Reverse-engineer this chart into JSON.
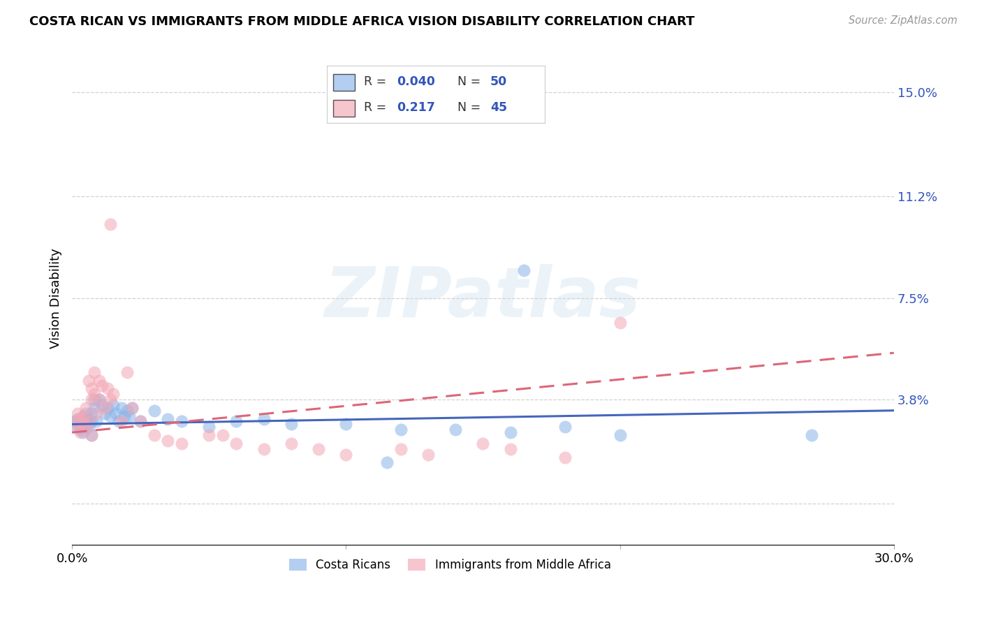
{
  "title": "COSTA RICAN VS IMMIGRANTS FROM MIDDLE AFRICA VISION DISABILITY CORRELATION CHART",
  "source": "Source: ZipAtlas.com",
  "ylabel": "Vision Disability",
  "xlim": [
    0.0,
    0.3
  ],
  "ylim": [
    -0.015,
    0.165
  ],
  "yticks": [
    0.0,
    0.038,
    0.075,
    0.112,
    0.15
  ],
  "ytick_labels": [
    "",
    "3.8%",
    "7.5%",
    "11.2%",
    "15.0%"
  ],
  "xticks": [
    0.0,
    0.1,
    0.2,
    0.3
  ],
  "xtick_labels": [
    "0.0%",
    "",
    "",
    "30.0%"
  ],
  "grid_color": "#cccccc",
  "background_color": "#ffffff",
  "watermark_text": "ZIPatlas",
  "blue_color": "#8ab4e8",
  "pink_color": "#f4a7b5",
  "blue_line_color": "#4466bb",
  "pink_line_color": "#dd6677",
  "blue_label": "Costa Ricans",
  "pink_label": "Immigrants from Middle Africa",
  "legend_text_color": "#3355bb",
  "legend_R1": "0.040",
  "legend_N1": "50",
  "legend_R2": "0.217",
  "legend_N2": "45",
  "blue_scatter": [
    [
      0.001,
      0.03
    ],
    [
      0.002,
      0.028
    ],
    [
      0.002,
      0.031
    ],
    [
      0.003,
      0.029
    ],
    [
      0.003,
      0.027
    ],
    [
      0.003,
      0.03
    ],
    [
      0.004,
      0.028
    ],
    [
      0.004,
      0.032
    ],
    [
      0.004,
      0.026
    ],
    [
      0.005,
      0.03
    ],
    [
      0.005,
      0.028
    ],
    [
      0.005,
      0.033
    ],
    [
      0.006,
      0.031
    ],
    [
      0.006,
      0.028
    ],
    [
      0.007,
      0.03
    ],
    [
      0.007,
      0.025
    ],
    [
      0.007,
      0.033
    ],
    [
      0.008,
      0.035
    ],
    [
      0.008,
      0.038
    ],
    [
      0.009,
      0.03
    ],
    [
      0.01,
      0.038
    ],
    [
      0.011,
      0.036
    ],
    [
      0.012,
      0.033
    ],
    [
      0.013,
      0.035
    ],
    [
      0.014,
      0.032
    ],
    [
      0.015,
      0.036
    ],
    [
      0.016,
      0.033
    ],
    [
      0.017,
      0.03
    ],
    [
      0.018,
      0.035
    ],
    [
      0.019,
      0.032
    ],
    [
      0.02,
      0.034
    ],
    [
      0.021,
      0.032
    ],
    [
      0.022,
      0.035
    ],
    [
      0.025,
      0.03
    ],
    [
      0.03,
      0.034
    ],
    [
      0.035,
      0.031
    ],
    [
      0.04,
      0.03
    ],
    [
      0.05,
      0.028
    ],
    [
      0.06,
      0.03
    ],
    [
      0.07,
      0.031
    ],
    [
      0.08,
      0.029
    ],
    [
      0.1,
      0.029
    ],
    [
      0.12,
      0.027
    ],
    [
      0.14,
      0.027
    ],
    [
      0.16,
      0.026
    ],
    [
      0.18,
      0.028
    ],
    [
      0.2,
      0.025
    ],
    [
      0.27,
      0.025
    ],
    [
      0.115,
      0.015
    ],
    [
      0.165,
      0.085
    ]
  ],
  "pink_scatter": [
    [
      0.001,
      0.028
    ],
    [
      0.002,
      0.03
    ],
    [
      0.002,
      0.033
    ],
    [
      0.003,
      0.031
    ],
    [
      0.003,
      0.026
    ],
    [
      0.004,
      0.029
    ],
    [
      0.004,
      0.032
    ],
    [
      0.005,
      0.035
    ],
    [
      0.005,
      0.028
    ],
    [
      0.006,
      0.03
    ],
    [
      0.006,
      0.045
    ],
    [
      0.007,
      0.038
    ],
    [
      0.007,
      0.042
    ],
    [
      0.007,
      0.025
    ],
    [
      0.008,
      0.048
    ],
    [
      0.008,
      0.04
    ],
    [
      0.009,
      0.033
    ],
    [
      0.01,
      0.045
    ],
    [
      0.01,
      0.038
    ],
    [
      0.011,
      0.043
    ],
    [
      0.012,
      0.035
    ],
    [
      0.013,
      0.042
    ],
    [
      0.014,
      0.038
    ],
    [
      0.015,
      0.04
    ],
    [
      0.018,
      0.03
    ],
    [
      0.02,
      0.048
    ],
    [
      0.022,
      0.035
    ],
    [
      0.025,
      0.03
    ],
    [
      0.03,
      0.025
    ],
    [
      0.035,
      0.023
    ],
    [
      0.04,
      0.022
    ],
    [
      0.05,
      0.025
    ],
    [
      0.06,
      0.022
    ],
    [
      0.07,
      0.02
    ],
    [
      0.08,
      0.022
    ],
    [
      0.09,
      0.02
    ],
    [
      0.1,
      0.018
    ],
    [
      0.12,
      0.02
    ],
    [
      0.13,
      0.018
    ],
    [
      0.15,
      0.022
    ],
    [
      0.18,
      0.017
    ],
    [
      0.2,
      0.066
    ],
    [
      0.014,
      0.102
    ],
    [
      0.055,
      0.025
    ],
    [
      0.16,
      0.02
    ]
  ],
  "blue_fit_x": [
    0.0,
    0.3
  ],
  "blue_fit_y": [
    0.029,
    0.034
  ],
  "pink_fit_x": [
    0.0,
    0.3
  ],
  "pink_fit_y": [
    0.026,
    0.055
  ]
}
